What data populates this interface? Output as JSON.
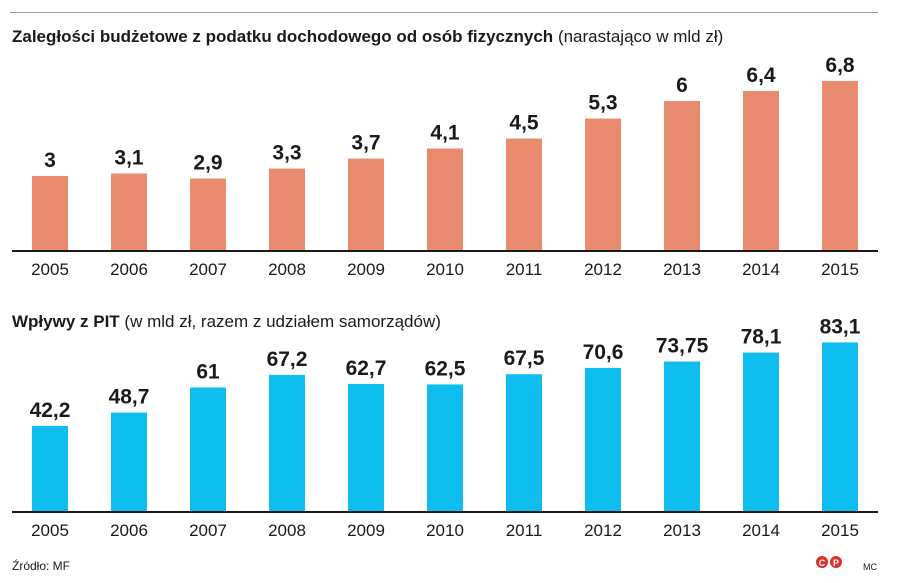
{
  "chart_data": [
    {
      "type": "bar",
      "title": "Zaległości budżetowe z podatku dochodowego od osób fizycznych",
      "subtitle": "(narastająco w mld zł)",
      "categories": [
        "2005",
        "2006",
        "2007",
        "2008",
        "2009",
        "2010",
        "2011",
        "2012",
        "2013",
        "2014",
        "2015"
      ],
      "values": [
        3,
        3.1,
        2.9,
        3.3,
        3.7,
        4.1,
        4.5,
        5.3,
        6,
        6.4,
        6.8
      ],
      "value_labels": [
        "3",
        "3,1",
        "2,9",
        "3,3",
        "3,7",
        "4,1",
        "4,5",
        "5,3",
        "6",
        "6,4",
        "6,8"
      ],
      "ylim": [
        0,
        8
      ],
      "color": "#e98b6e",
      "grid": false,
      "legend": "none"
    },
    {
      "type": "bar",
      "title": "Wpływy z PIT",
      "subtitle": "(w mld zł, razem z udziałem samorządów)",
      "categories": [
        "2005",
        "2006",
        "2007",
        "2008",
        "2009",
        "2010",
        "2011",
        "2012",
        "2013",
        "2014",
        "2015"
      ],
      "values": [
        42.2,
        48.7,
        61,
        67.2,
        62.7,
        62.5,
        67.5,
        70.6,
        73.75,
        78.1,
        83.1
      ],
      "value_labels": [
        "42,2",
        "48,7",
        "61",
        "67,2",
        "62,7",
        "62,5",
        "67,5",
        "70,6",
        "73,75",
        "78,1",
        "83,1"
      ],
      "ylim": [
        0,
        98
      ],
      "color": "#0fbdee",
      "grid": false,
      "legend": "none"
    }
  ],
  "footer": {
    "source": "Źródło: MF",
    "logo_text": "CP",
    "author": "MC"
  }
}
